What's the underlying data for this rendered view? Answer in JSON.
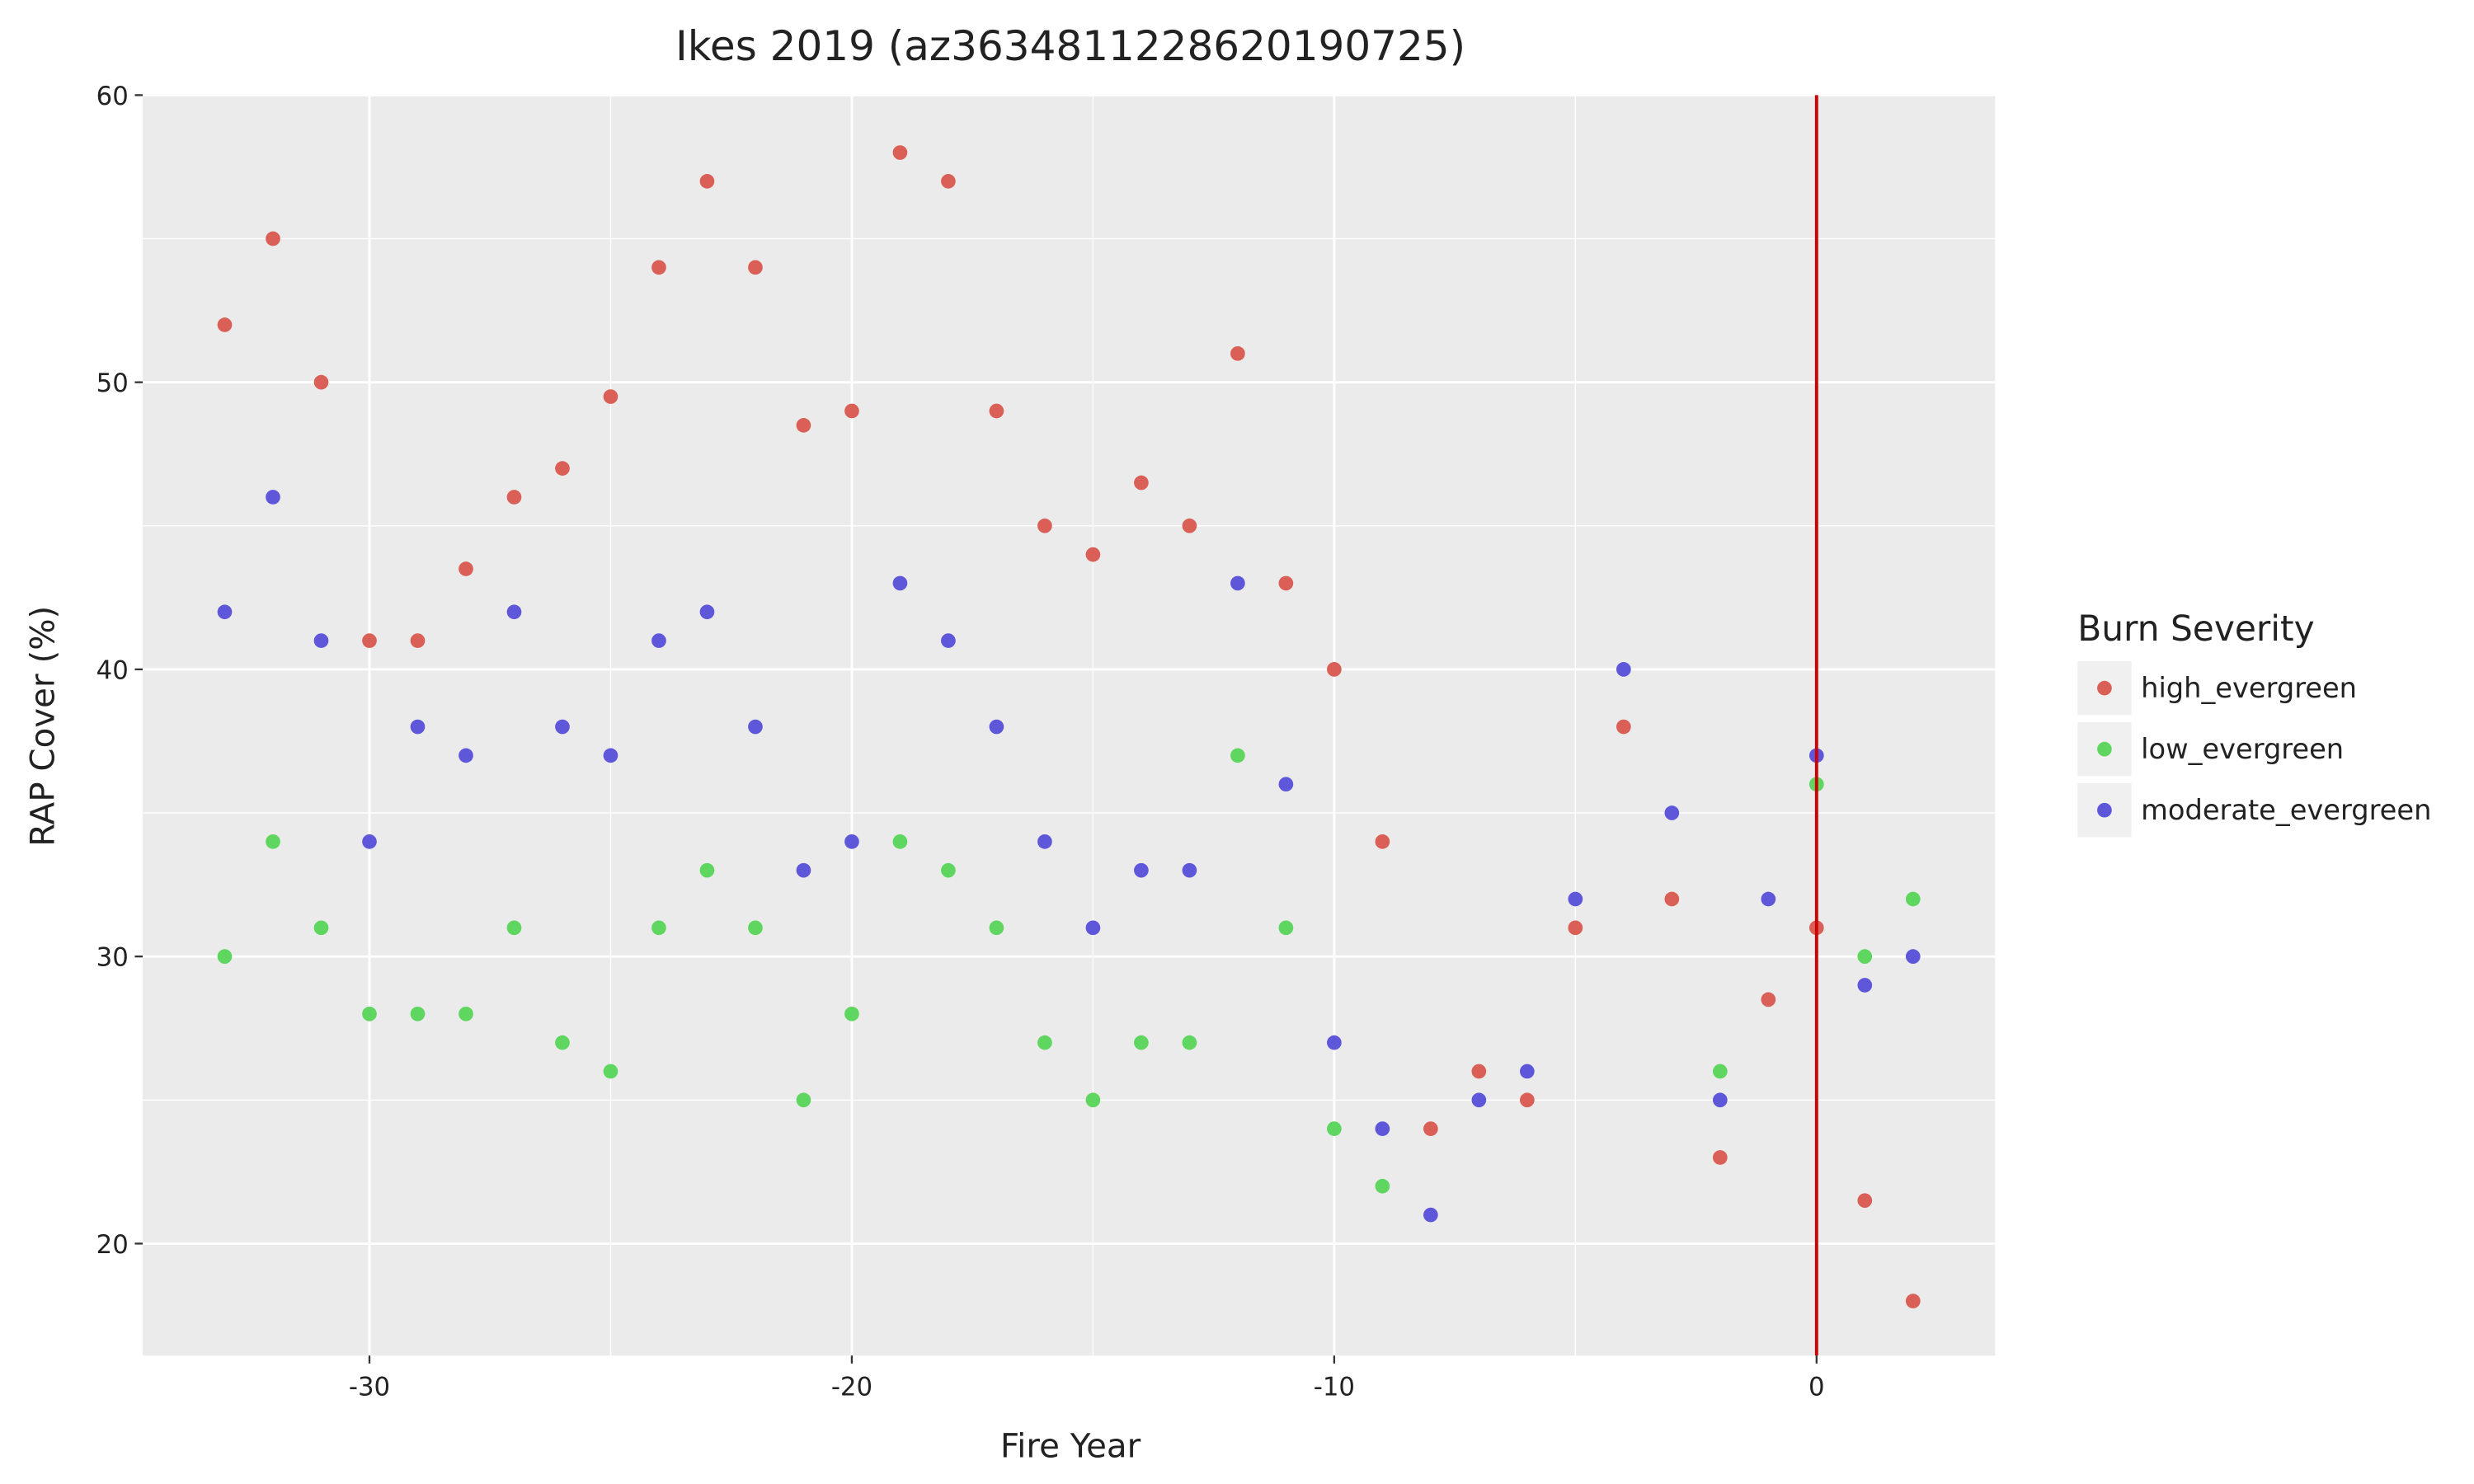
{
  "chart_data": {
    "type": "scatter",
    "title": "Ikes 2019 (az3634811228620190725)",
    "x_label": "Fire Year",
    "y_label": "RAP Cover (%)",
    "legend_title": "Burn Severity",
    "legend_position": "right",
    "x": [
      -33,
      -32,
      -31,
      -30,
      -29,
      -28,
      -27,
      -26,
      -25,
      -24,
      -23,
      -22,
      -21,
      -20,
      -19,
      -18,
      -17,
      -16,
      -15,
      -14,
      -13,
      -12,
      -11,
      -10,
      -9,
      -8,
      -7,
      -6,
      -5,
      -4,
      -3,
      -2,
      -1,
      0,
      1,
      2
    ],
    "series": [
      {
        "name": "high_evergreen",
        "color": "#d95f57",
        "values": [
          52,
          55,
          50,
          41,
          41,
          43.5,
          46,
          47,
          49.5,
          54,
          57,
          54,
          48.5,
          49,
          58,
          57,
          49,
          45,
          44,
          46.5,
          45,
          51,
          43,
          40,
          34,
          24,
          26,
          25,
          31,
          38,
          32,
          23,
          28.5,
          31,
          21.5,
          18
        ]
      },
      {
        "name": "low_evergreen",
        "color": "#5fd65f",
        "values": [
          30,
          34,
          31,
          28,
          28,
          28,
          31,
          27,
          26,
          31,
          33,
          31,
          25,
          28,
          34,
          33,
          31,
          27,
          25,
          27,
          27,
          37,
          31,
          24,
          22,
          null,
          null,
          null,
          null,
          null,
          null,
          26,
          null,
          36,
          30,
          32
        ]
      },
      {
        "name": "moderate_evergreen",
        "color": "#5f57d9",
        "values": [
          42,
          46,
          41,
          34,
          38,
          37,
          42,
          38,
          37,
          41,
          42,
          38,
          33,
          34,
          43,
          41,
          38,
          34,
          31,
          33,
          33,
          43,
          36,
          27,
          24,
          21,
          25,
          26,
          32,
          40,
          35,
          25,
          32,
          37,
          29,
          30
        ]
      }
    ],
    "vline": {
      "x": 0,
      "color": "#cc0000"
    },
    "xlim": [
      -34.7,
      3.7
    ],
    "xticks": [
      -30,
      -20,
      -10,
      0
    ],
    "ylim": [
      16.1,
      60
    ],
    "yticks": [
      20,
      30,
      40,
      50,
      60
    ],
    "grid": true
  }
}
